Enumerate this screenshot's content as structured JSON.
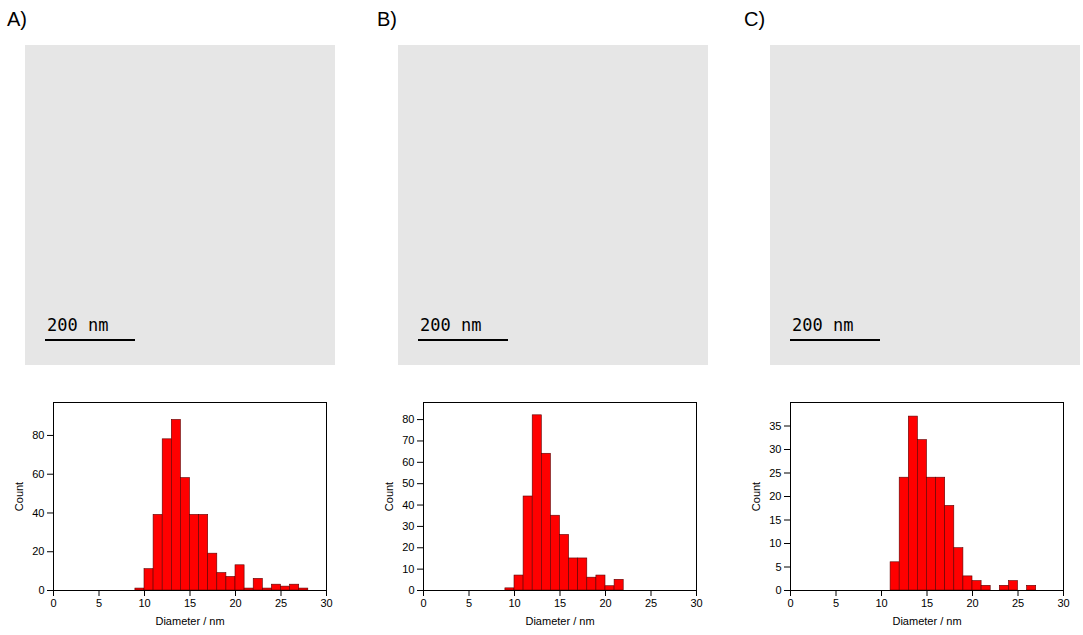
{
  "panels": [
    {
      "label": "A)",
      "scale_bar": "200 nm"
    },
    {
      "label": "B)",
      "scale_bar": "200 nm"
    },
    {
      "label": "C)",
      "scale_bar": "200 nm"
    }
  ],
  "chart_data": [
    {
      "type": "histogram",
      "x_label": "Diameter / nm",
      "y_label": "Count",
      "color": "#ff0000",
      "bins": [
        9,
        10,
        11,
        12,
        13,
        14,
        15,
        16,
        17,
        18,
        19,
        20,
        21,
        22,
        23,
        24,
        25,
        26,
        27,
        28
      ],
      "counts": [
        1,
        11,
        39,
        78,
        88,
        58,
        39,
        39,
        19,
        9,
        7,
        13,
        1,
        6,
        1,
        3,
        2,
        3,
        1
      ],
      "xlim": [
        0,
        30
      ],
      "xticks": [
        0,
        5,
        10,
        15,
        20,
        25,
        30
      ],
      "ylim": [
        0,
        97
      ],
      "yticks": [
        0,
        20,
        40,
        60,
        80
      ]
    },
    {
      "type": "histogram",
      "x_label": "Diameter / nm",
      "y_label": "Count",
      "color": "#ff0000",
      "bins": [
        9,
        10,
        11,
        12,
        13,
        14,
        15,
        16,
        17,
        18,
        19,
        20,
        21,
        22
      ],
      "counts": [
        1,
        7,
        44,
        82,
        64,
        35,
        26,
        15,
        15,
        6,
        7,
        2,
        5
      ],
      "xlim": [
        0,
        30
      ],
      "xticks": [
        0,
        5,
        10,
        15,
        20,
        25,
        30
      ],
      "ylim": [
        0,
        88
      ],
      "yticks": [
        0,
        10,
        20,
        30,
        40,
        50,
        60,
        70,
        80
      ]
    },
    {
      "type": "histogram",
      "x_label": "Diameter / nm",
      "y_label": "Count",
      "color": "#ff0000",
      "bins": [
        11,
        12,
        13,
        14,
        15,
        16,
        17,
        18,
        19,
        20,
        21,
        22,
        23,
        24,
        25,
        26,
        27
      ],
      "counts": [
        6,
        24,
        37,
        32,
        24,
        24,
        18,
        9,
        3,
        2,
        1,
        0,
        1,
        2,
        0,
        1
      ],
      "xlim": [
        0,
        30
      ],
      "xticks": [
        0,
        5,
        10,
        15,
        20,
        25,
        30
      ],
      "ylim": [
        0,
        40
      ],
      "yticks": [
        0,
        5,
        10,
        15,
        20,
        25,
        30,
        35
      ]
    }
  ]
}
